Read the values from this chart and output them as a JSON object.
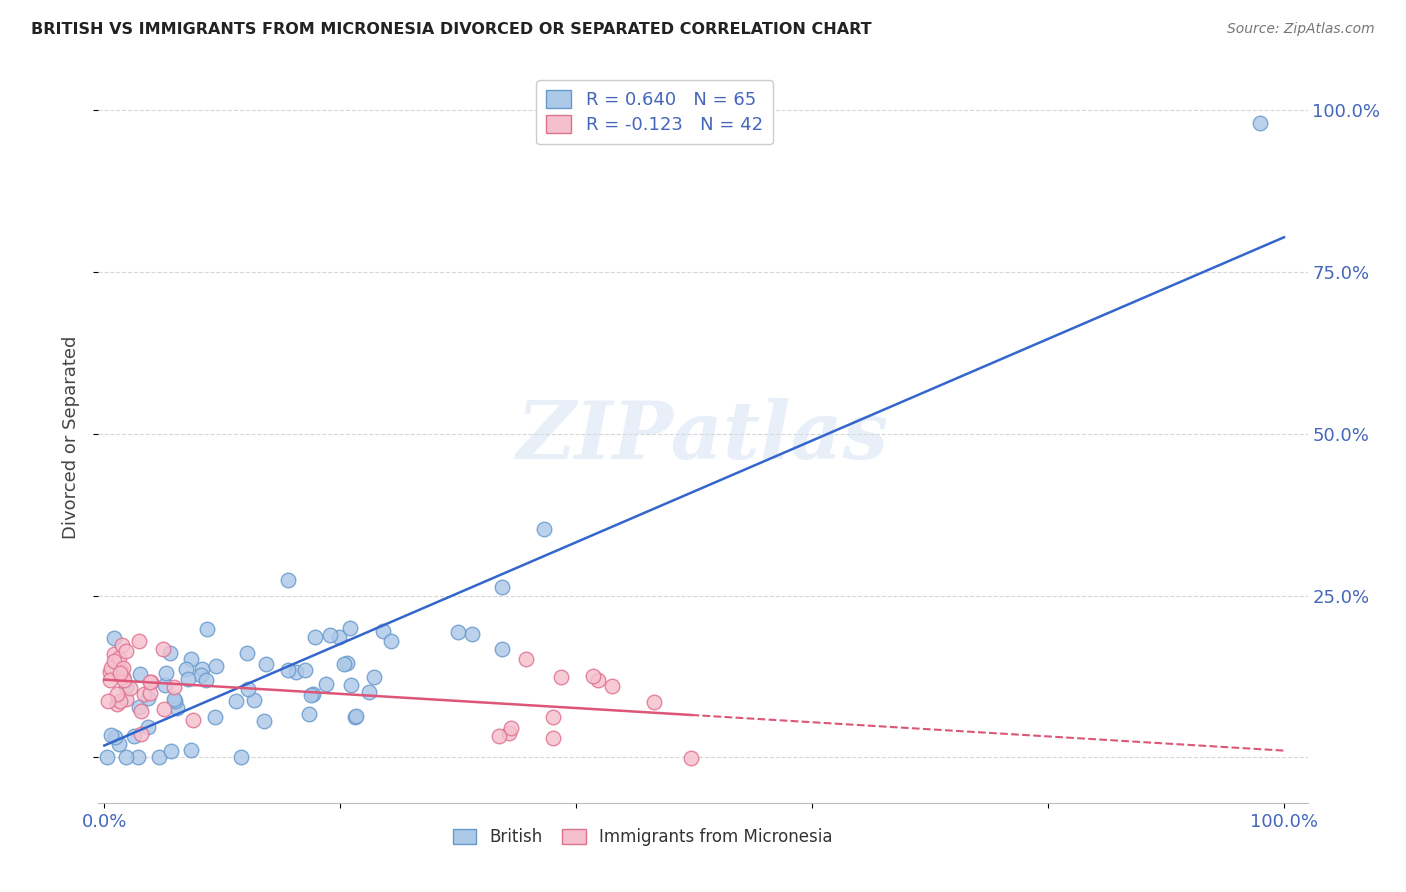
{
  "title": "BRITISH VS IMMIGRANTS FROM MICRONESIA DIVORCED OR SEPARATED CORRELATION CHART",
  "source": "Source: ZipAtlas.com",
  "ylabel": "Divorced or Separated",
  "british_R": 0.64,
  "british_N": 65,
  "micronesia_R": -0.123,
  "micronesia_N": 42,
  "british_color": "#adc9e8",
  "british_edge_color": "#6699cc",
  "micronesia_color": "#f5c0ce",
  "micronesia_edge_color": "#e07090",
  "trend_british_color": "#3366cc",
  "trend_micronesia_color": "#dd5577",
  "watermark_text": "ZIPatlas",
  "background_color": "#ffffff",
  "grid_color": "#cccccc",
  "title_color": "#222222",
  "source_color": "#777777",
  "tick_color": "#4466bb",
  "brit_slope": 0.58,
  "brit_intercept": 0.045,
  "micro_slope": -0.08,
  "micro_intercept": 0.115
}
